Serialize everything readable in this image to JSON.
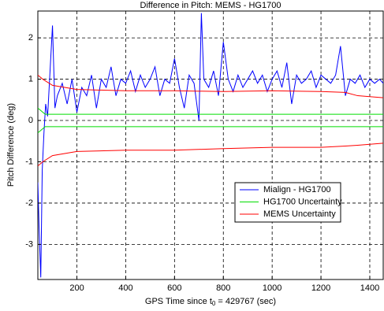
{
  "chart_data": {
    "type": "line",
    "title": "Difference in Pitch: MEMS - HG1700",
    "xlabel": [
      "GPS Time since t",
      "0",
      " = 429767 (sec)"
    ],
    "ylabel": "Pitch Difference (deg)",
    "xlim": [
      40,
      1455
    ],
    "ylim": [
      -3.85,
      2.65
    ],
    "xticks": [
      200,
      400,
      600,
      800,
      1000,
      1200,
      1400
    ],
    "yticks": [
      -3,
      -2,
      -1,
      0,
      1,
      2
    ],
    "grid": true,
    "legend": "lower-right",
    "series": [
      {
        "name": "Mialign - HG1700",
        "color": "#0000ff",
        "x": [
          40,
          45,
          52,
          58,
          65,
          72,
          80,
          90,
          100,
          110,
          120,
          140,
          160,
          180,
          200,
          220,
          240,
          260,
          280,
          300,
          320,
          340,
          360,
          380,
          400,
          420,
          440,
          460,
          480,
          500,
          520,
          540,
          560,
          580,
          600,
          620,
          640,
          660,
          680,
          700,
          710,
          720,
          740,
          760,
          780,
          800,
          820,
          840,
          860,
          880,
          900,
          920,
          940,
          960,
          980,
          1000,
          1020,
          1040,
          1060,
          1080,
          1100,
          1120,
          1140,
          1160,
          1180,
          1200,
          1220,
          1240,
          1260,
          1280,
          1300,
          1320,
          1340,
          1360,
          1380,
          1400,
          1420,
          1440,
          1455
        ],
        "values": [
          -1.5,
          -2.6,
          -3.8,
          -1.2,
          -0.3,
          0.4,
          0.1,
          1.2,
          2.3,
          0.3,
          0.6,
          0.9,
          0.4,
          1.0,
          0.2,
          0.8,
          0.6,
          1.1,
          0.3,
          1.0,
          0.8,
          1.3,
          0.6,
          1.0,
          0.9,
          1.2,
          0.7,
          1.1,
          0.8,
          1.0,
          1.3,
          0.6,
          1.0,
          0.9,
          1.5,
          0.8,
          0.3,
          1.1,
          0.9,
          0.0,
          2.6,
          1.0,
          0.8,
          1.2,
          0.6,
          1.9,
          1.0,
          0.7,
          1.1,
          0.8,
          1.0,
          1.2,
          0.9,
          1.1,
          0.7,
          1.0,
          1.2,
          0.8,
          1.4,
          0.4,
          1.1,
          0.9,
          1.0,
          1.2,
          0.8,
          1.1,
          1.0,
          0.9,
          1.1,
          1.8,
          0.6,
          1.0,
          0.9,
          1.1,
          0.8,
          1.0,
          0.9,
          1.0,
          0.9
        ]
      },
      {
        "name": "HG1700 Uncertainty",
        "color": "#00dd00",
        "x": [
          40,
          70,
          1455
        ],
        "values": [
          0.3,
          0.15,
          0.15
        ],
        "lower": [
          -0.3,
          -0.15,
          -0.15
        ]
      },
      {
        "name": "MEMS Uncertainty",
        "color": "#ff0000",
        "x": [
          40,
          60,
          100,
          200,
          400,
          600,
          800,
          1000,
          1200,
          1300,
          1350,
          1455
        ],
        "values": [
          1.1,
          1.0,
          0.85,
          0.75,
          0.72,
          0.72,
          0.7,
          0.72,
          0.7,
          0.68,
          0.6,
          0.55
        ],
        "lower": [
          -1.1,
          -1.0,
          -0.85,
          -0.75,
          -0.72,
          -0.72,
          -0.68,
          -0.65,
          -0.65,
          -0.62,
          -0.6,
          -0.55
        ]
      }
    ]
  }
}
